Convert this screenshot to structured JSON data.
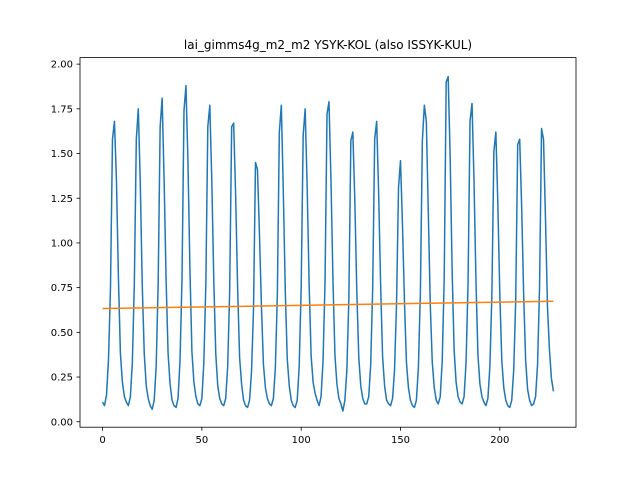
{
  "chart_data": {
    "type": "line",
    "title": "lai_gimms4g_m2_m2 YSYK-KOL (also ISSYK-KUL)",
    "xlabel": "",
    "ylabel": "",
    "xlim": [
      -11.35,
      238.35
    ],
    "ylim": [
      -0.0305,
      2.0365
    ],
    "x_ticks": [
      0,
      50,
      100,
      150,
      200
    ],
    "x_tick_labels": [
      "0",
      "50",
      "100",
      "150",
      "200"
    ],
    "y_ticks": [
      0.0,
      0.25,
      0.5,
      0.75,
      1.0,
      1.25,
      1.5,
      1.75,
      2.0
    ],
    "y_tick_labels": [
      "0.00",
      "0.25",
      "0.50",
      "0.75",
      "1.00",
      "1.25",
      "1.50",
      "1.75",
      "2.00"
    ],
    "grid": false,
    "colors": {
      "series": "#1f77b4",
      "trend": "#ff7f0e"
    },
    "series": [
      {
        "values": [
          0.11,
          0.09,
          0.15,
          0.35,
          0.75,
          1.58,
          1.68,
          1.35,
          0.8,
          0.38,
          0.22,
          0.14,
          0.11,
          0.09,
          0.14,
          0.33,
          0.77,
          1.58,
          1.75,
          1.33,
          0.76,
          0.38,
          0.2,
          0.13,
          0.09,
          0.07,
          0.12,
          0.31,
          0.77,
          1.65,
          1.81,
          1.35,
          0.79,
          0.38,
          0.21,
          0.12,
          0.09,
          0.08,
          0.13,
          0.34,
          0.8,
          1.74,
          1.88,
          1.45,
          0.85,
          0.39,
          0.22,
          0.14,
          0.1,
          0.09,
          0.13,
          0.33,
          0.77,
          1.65,
          1.77,
          1.35,
          0.79,
          0.38,
          0.2,
          0.13,
          0.1,
          0.09,
          0.13,
          0.31,
          0.73,
          1.65,
          1.67,
          1.27,
          0.75,
          0.36,
          0.21,
          0.12,
          0.09,
          0.08,
          0.12,
          0.28,
          0.63,
          1.45,
          1.41,
          1.05,
          0.64,
          0.32,
          0.19,
          0.13,
          0.1,
          0.09,
          0.13,
          0.3,
          0.71,
          1.62,
          1.77,
          1.29,
          0.73,
          0.35,
          0.2,
          0.12,
          0.09,
          0.08,
          0.12,
          0.31,
          0.75,
          1.6,
          1.75,
          1.32,
          0.77,
          0.37,
          0.22,
          0.16,
          0.12,
          0.09,
          0.14,
          0.34,
          0.78,
          1.72,
          1.79,
          1.35,
          0.79,
          0.37,
          0.21,
          0.13,
          0.1,
          0.06,
          0.12,
          0.29,
          0.69,
          1.57,
          1.62,
          1.24,
          0.73,
          0.36,
          0.2,
          0.13,
          0.1,
          0.1,
          0.14,
          0.32,
          0.75,
          1.58,
          1.68,
          1.28,
          0.76,
          0.36,
          0.2,
          0.12,
          0.1,
          0.09,
          0.13,
          0.29,
          0.66,
          1.31,
          1.46,
          1.1,
          0.67,
          0.33,
          0.19,
          0.12,
          0.09,
          0.08,
          0.12,
          0.3,
          0.72,
          1.57,
          1.77,
          1.68,
          1.17,
          0.65,
          0.33,
          0.19,
          0.12,
          0.1,
          0.14,
          0.34,
          0.8,
          1.9,
          1.93,
          1.48,
          0.84,
          0.4,
          0.22,
          0.14,
          0.11,
          0.1,
          0.14,
          0.33,
          0.77,
          1.68,
          1.78,
          1.35,
          0.78,
          0.37,
          0.21,
          0.14,
          0.11,
          0.09,
          0.13,
          0.31,
          0.71,
          1.51,
          1.62,
          1.22,
          0.71,
          0.34,
          0.19,
          0.12,
          0.09,
          0.08,
          0.12,
          0.29,
          0.68,
          1.55,
          1.58,
          1.2,
          0.71,
          0.34,
          0.18,
          0.12,
          0.09,
          0.1,
          0.14,
          0.32,
          0.75,
          1.64,
          1.58,
          1.13,
          0.64,
          0.4,
          0.24,
          0.17
        ]
      },
      {
        "x": [
          0,
          227
        ],
        "values": [
          0.633,
          0.674
        ]
      }
    ]
  }
}
